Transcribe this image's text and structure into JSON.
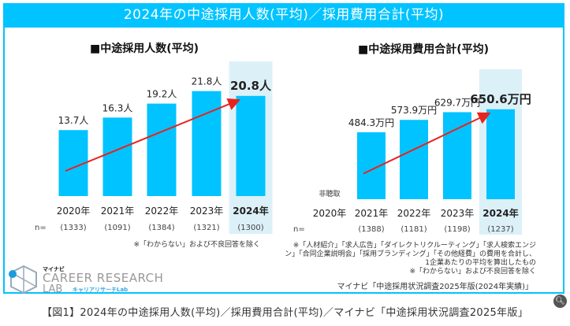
{
  "banner": {
    "title": "2024年の中途採用人数(平均)／採用費用合計(平均)"
  },
  "chart_data": [
    {
      "type": "bar",
      "title": "■中途採用人数(平均)",
      "categories": [
        "2020年",
        "2021年",
        "2022年",
        "2023年",
        "2024年"
      ],
      "values": [
        13.7,
        16.3,
        19.2,
        21.8,
        20.8
      ],
      "value_labels": [
        "13.7人",
        "16.3人",
        "19.2人",
        "21.8人",
        "20.8人"
      ],
      "sample_prefix": "n=",
      "sample_sizes": [
        "(1333)",
        "(1091)",
        "(1384)",
        "(1321)",
        "(1300)"
      ],
      "highlight_category": "2024年",
      "trend_arrow": true,
      "notes": [
        "※「わからない」および不良回答を除く"
      ],
      "ylim": [
        0,
        26
      ],
      "xlabel": "",
      "ylabel": ""
    },
    {
      "type": "bar",
      "title": "■中途採用費用合計(平均)",
      "categories": [
        "2020年",
        "2021年",
        "2022年",
        "2023年",
        "2024年"
      ],
      "values": [
        null,
        484.3,
        573.9,
        629.7,
        650.6
      ],
      "value_labels": [
        "非聴取",
        "484.3万円",
        "573.9万円",
        "629.7万円",
        "650.6万円"
      ],
      "sample_prefix": "n=",
      "sample_sizes": [
        "",
        "(1388)",
        "(1181)",
        "(1198)",
        "(1237)"
      ],
      "highlight_category": "2024年",
      "trend_arrow": true,
      "notes": [
        "※「人材紹介」「求人広告」「ダイレクトリクルーティング」「求人検索エンジ",
        "ン」「合同企業説明会」「採用ブランディング」「その他経費」の費用を合計し、",
        "1企業あたりの平均を算出したもの",
        "※「わからない」および不良回答を除く"
      ],
      "source": "マイナビ「中途採用状況調査2025年版(2024年実績)」",
      "ylim": [
        0,
        900
      ],
      "xlabel": "",
      "ylabel": ""
    }
  ],
  "colors": {
    "bar": "#00c3ff",
    "highlight_bg": "#dcf0f8",
    "arrow": "#e8231e",
    "frame": "#00c3ff"
  },
  "logo": {
    "brand_top": "マイナビ",
    "main": "CAREER RESEARCH",
    "lab": "LAB",
    "sub": "キャリアリサーチLab"
  },
  "caption": "【図1】2024年の中途採用人数(平均)／採用費用合計(平均)／マイナビ「中途採用状況調査2025年版」",
  "zoom_icon": "magnifier-icon"
}
